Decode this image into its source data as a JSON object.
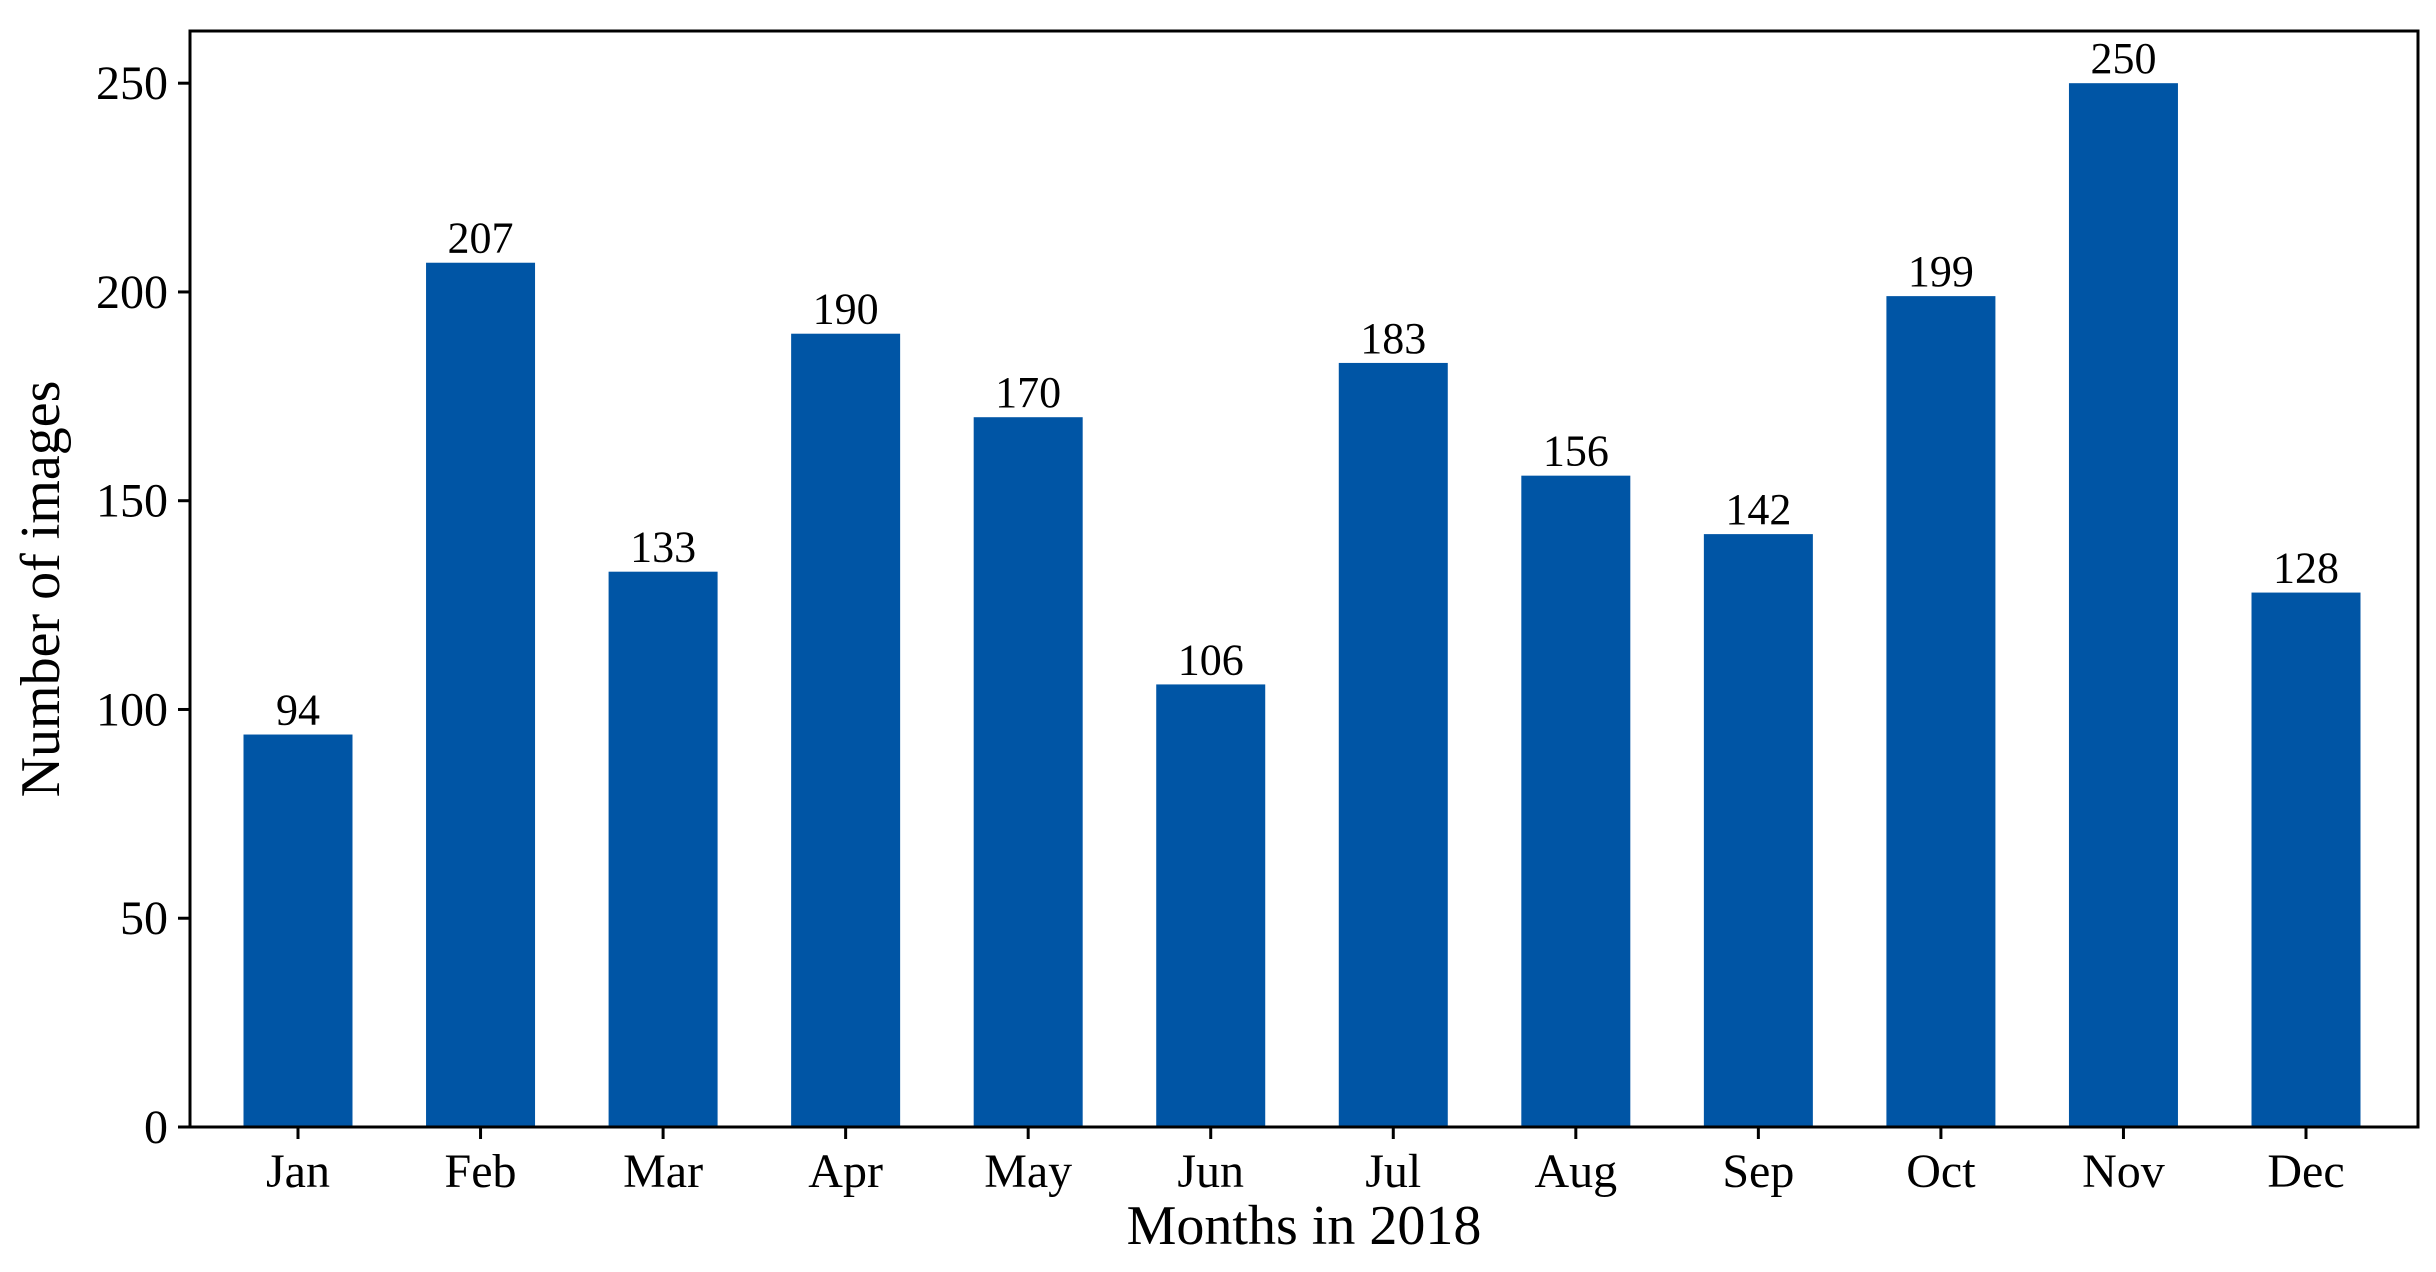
{
  "chart_data": {
    "type": "bar",
    "categories": [
      "Jan",
      "Feb",
      "Mar",
      "Apr",
      "May",
      "Jun",
      "Jul",
      "Aug",
      "Sep",
      "Oct",
      "Nov",
      "Dec"
    ],
    "values": [
      94,
      207,
      133,
      190,
      170,
      106,
      183,
      156,
      142,
      199,
      250,
      128
    ],
    "data_labels": [
      "94",
      "207",
      "133",
      "190",
      "170",
      "106",
      "183",
      "156",
      "142",
      "199",
      "250",
      "128"
    ],
    "title": "",
    "xlabel": "Months in 2018",
    "ylabel": "Number of images",
    "ylim": [
      0,
      262.5
    ],
    "yticks": [
      0,
      50,
      100,
      150,
      200,
      250
    ],
    "ytick_labels": [
      "0",
      "50",
      "100",
      "150",
      "200",
      "250"
    ],
    "grid": false,
    "bar_color": "#0055a5"
  }
}
